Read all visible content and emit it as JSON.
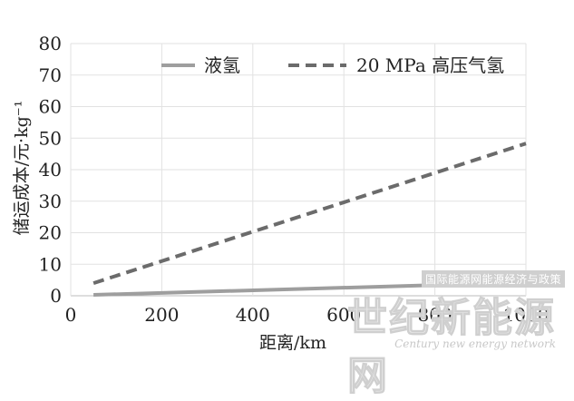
{
  "chart_data": {
    "type": "line",
    "title": "",
    "xlabel": "距离/km",
    "ylabel": "储运成本/元·kg⁻¹",
    "xlim": [
      0,
      1000
    ],
    "ylim": [
      0,
      80
    ],
    "x_ticks": [
      "0",
      "200",
      "400",
      "600",
      "800",
      "1000"
    ],
    "y_ticks": [
      "0",
      "10",
      "20",
      "30",
      "40",
      "50",
      "60",
      "70",
      "80"
    ],
    "grid": true,
    "legend_position": "top",
    "series": [
      {
        "name": "液氢",
        "style": "solid",
        "color": "#9e9e9e",
        "x": [
          50,
          1000
        ],
        "y": [
          0.3,
          4.2
        ]
      },
      {
        "name": "20 MPa 高压气氢",
        "style": "dashed",
        "color": "#6b6b6b",
        "x": [
          50,
          1000
        ],
        "y": [
          4.0,
          48.3
        ]
      }
    ]
  },
  "watermark": {
    "top": "国际能源网能源经济与政策",
    "main": "世纪新能源网",
    "sub": "Century new energy network"
  }
}
